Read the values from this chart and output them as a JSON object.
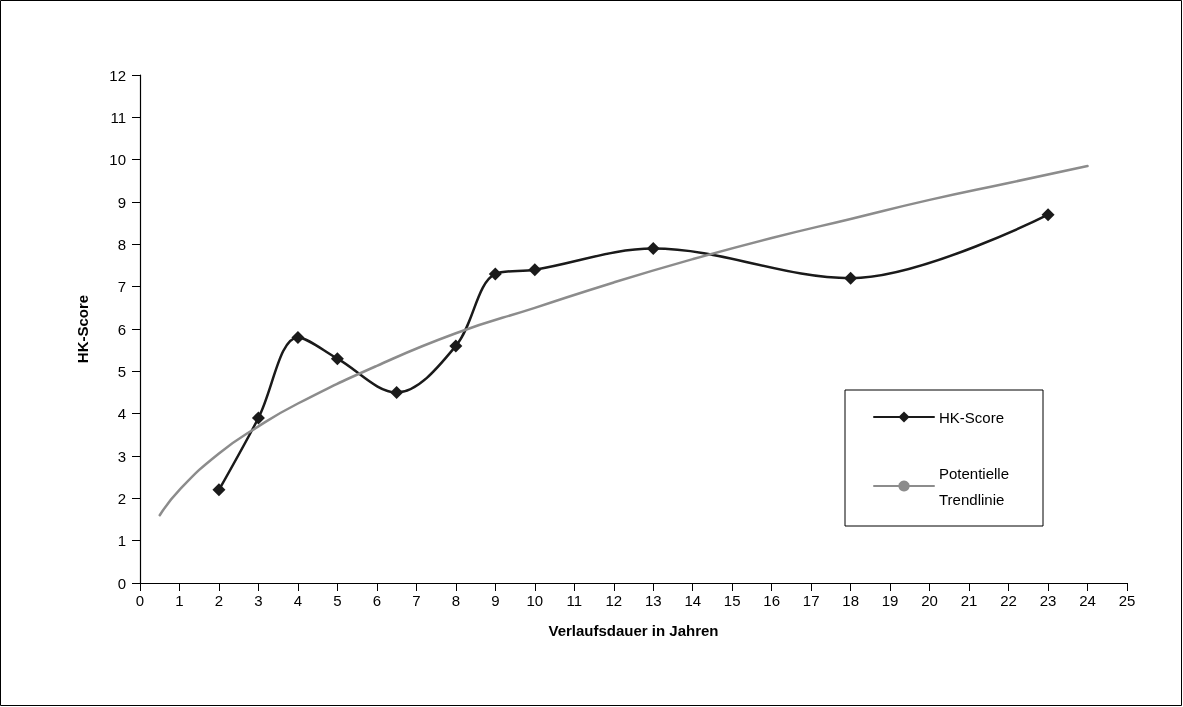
{
  "chart_data": {
    "type": "line",
    "xlabel": "Verlaufsdauer in Jahren",
    "ylabel": "HK-Score",
    "xlim": [
      0,
      25
    ],
    "xticks": [
      0,
      1,
      2,
      3,
      4,
      5,
      6,
      7,
      8,
      9,
      10,
      11,
      12,
      13,
      14,
      15,
      16,
      17,
      18,
      19,
      20,
      21,
      22,
      23,
      24,
      25
    ],
    "ylim": [
      0,
      12
    ],
    "yticks": [
      0,
      1,
      2,
      3,
      4,
      5,
      6,
      7,
      8,
      9,
      10,
      11,
      12
    ],
    "grid": false,
    "legend": "right",
    "marker": "diamond",
    "series": [
      {
        "name": "HK-Score",
        "color": "#1a1a1a",
        "x": [
          2,
          3,
          4,
          5,
          6.5,
          8,
          9,
          10,
          13,
          18,
          23
        ],
        "values": [
          2.2,
          3.9,
          5.8,
          5.3,
          4.5,
          5.6,
          7.3,
          7.4,
          7.9,
          7.2,
          8.7
        ]
      },
      {
        "name": "Potentielle Trendlinie",
        "color": "#8c8c8c",
        "marker": "none",
        "x": [
          0.5,
          1,
          2,
          3,
          4,
          6,
          8,
          10,
          12,
          14,
          16,
          18,
          20,
          22,
          24
        ],
        "values": [
          1.6,
          2.2,
          3.06,
          3.7,
          4.24,
          5.13,
          5.9,
          6.5,
          7.1,
          7.65,
          8.15,
          8.6,
          9.05,
          9.45,
          9.85
        ]
      }
    ]
  }
}
